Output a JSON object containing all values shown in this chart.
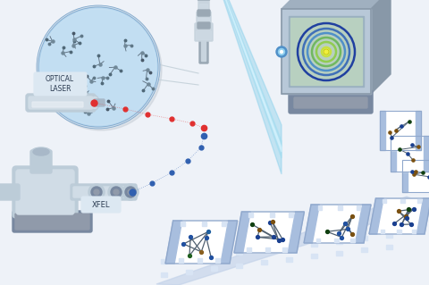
{
  "bg_color": "#f0f4f8",
  "laser_label": "OPTICAL\nLASER",
  "xfel_label": "XFEL",
  "laser_dots_color": "#e03030",
  "xfel_dots_color": "#3060b0",
  "beam_color": "#70c8e8",
  "circle_bg_color": "#b8d8f0",
  "circle_border": "#80a8cc",
  "equip_base": "#a8b8c8",
  "equip_mid": "#bcccd8",
  "equip_light": "#d0dce6",
  "equip_dark": "#7888a0",
  "equip_shadow": "#909aaa",
  "needle_body": "#c8d4de",
  "needle_dark": "#9aa8b4",
  "needle_ring": "#b0bcc8",
  "detector_box": "#b8c8d8",
  "detector_top": "#a0b0c0",
  "detector_right": "#8898a8",
  "screen_bg": "#c8e0c8",
  "ring_colors": [
    "#2040a0",
    "#4070b8",
    "#5090c8",
    "#70b860",
    "#90cc50",
    "#c8e040"
  ],
  "film_base": "#c0d0e8",
  "film_border": "#90a8cc",
  "film_stripe": "#a8bede",
  "film_hole": "#d8e4f4",
  "figsize": [
    4.8,
    3.19
  ],
  "dpi": 100
}
